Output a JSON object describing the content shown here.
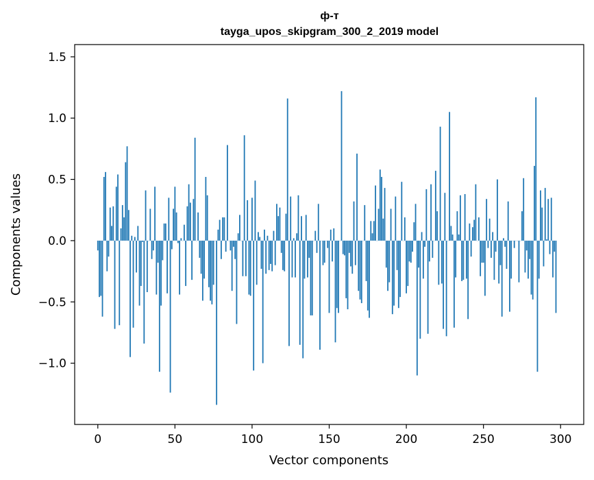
{
  "chart_data": {
    "type": "bar",
    "title": "ф-т",
    "subtitle": "tayga_upos_skipgram_300_2_2019 model",
    "xlabel": "Vector components",
    "ylabel": "Components values",
    "xlim": [
      -15,
      315
    ],
    "ylim": [
      -1.5,
      1.6
    ],
    "xticks": [
      0,
      50,
      100,
      150,
      200,
      250,
      300
    ],
    "xtick_labels": [
      "0",
      "50",
      "100",
      "150",
      "200",
      "250",
      "300"
    ],
    "yticks": [
      -1.0,
      -0.5,
      0.0,
      0.5,
      1.0,
      1.5
    ],
    "ytick_labels": [
      "−1.0",
      "−0.5",
      "0.0",
      "0.5",
      "1.0",
      "1.5"
    ],
    "grid": false,
    "legend": false,
    "bar_color": "#1f77b4",
    "x": "indices 0..299",
    "values": [
      -0.08,
      -0.46,
      -0.45,
      -0.62,
      0.52,
      0.56,
      -0.25,
      -0.13,
      0.27,
      0.12,
      0.28,
      -0.72,
      0.44,
      0.54,
      -0.69,
      0.1,
      0.29,
      0.19,
      0.64,
      0.77,
      0.25,
      -0.95,
      0.04,
      -0.71,
      0.03,
      -0.26,
      0.12,
      -0.53,
      -0.37,
      -0.01,
      -0.84,
      0.41,
      -0.42,
      0.0,
      0.26,
      -0.15,
      -0.08,
      0.44,
      -0.44,
      -0.18,
      -1.07,
      -0.53,
      -0.16,
      0.14,
      0.14,
      -0.43,
      0.35,
      -1.24,
      -0.07,
      0.26,
      0.44,
      0.23,
      -0.02,
      -0.44,
      0.02,
      0.0,
      0.13,
      -0.37,
      0.28,
      0.46,
      0.31,
      -0.32,
      0.34,
      0.84,
      0.0,
      0.23,
      -0.14,
      -0.27,
      -0.49,
      -0.31,
      0.52,
      0.37,
      -0.38,
      -0.49,
      -0.52,
      -0.36,
      0.0,
      -1.34,
      0.09,
      0.17,
      -0.15,
      0.19,
      0.19,
      -0.09,
      0.78,
      0.0,
      -0.08,
      -0.41,
      -0.05,
      -0.15,
      -0.68,
      0.06,
      0.21,
      0.0,
      -0.29,
      0.86,
      -0.29,
      0.33,
      -0.44,
      -0.45,
      0.35,
      -1.06,
      0.49,
      -0.36,
      0.07,
      0.03,
      -0.23,
      -1.0,
      0.09,
      -0.27,
      0.04,
      -0.24,
      -0.19,
      -0.25,
      0.08,
      -0.2,
      0.3,
      0.2,
      0.27,
      -0.1,
      -0.24,
      -0.25,
      0.22,
      1.16,
      -0.86,
      0.36,
      -0.3,
      0.02,
      -0.3,
      0.06,
      0.37,
      -0.85,
      0.2,
      -0.96,
      -0.31,
      0.21,
      -0.3,
      -0.14,
      -0.61,
      -0.61,
      0.0,
      0.08,
      -0.1,
      0.3,
      -0.89,
      0.0,
      -0.2,
      -0.18,
      0.0,
      -0.06,
      -0.59,
      0.09,
      -0.17,
      0.1,
      -0.83,
      -0.55,
      -0.59,
      0.0,
      1.22,
      -0.11,
      -0.12,
      -0.47,
      -0.56,
      -0.1,
      -0.21,
      -0.27,
      0.32,
      -0.2,
      0.71,
      -0.41,
      -0.48,
      -0.51,
      0.0,
      0.29,
      -0.33,
      -0.57,
      -0.63,
      0.16,
      0.06,
      0.16,
      0.45,
      0.0,
      0.26,
      0.58,
      0.52,
      0.18,
      0.43,
      -0.22,
      -0.41,
      -0.34,
      0.26,
      -0.6,
      -0.53,
      0.36,
      -0.24,
      -0.55,
      -0.46,
      0.48,
      0.0,
      0.19,
      -0.43,
      -0.37,
      -0.17,
      -0.18,
      -0.09,
      0.15,
      0.3,
      -1.1,
      -0.22,
      -0.8,
      0.07,
      -0.31,
      -0.05,
      0.42,
      -0.76,
      -0.17,
      0.46,
      -0.14,
      0.0,
      0.57,
      0.24,
      -0.36,
      0.93,
      -0.35,
      -0.72,
      0.39,
      -0.78,
      0.0,
      1.05,
      0.12,
      0.05,
      -0.71,
      -0.3,
      0.24,
      0.05,
      0.37,
      -0.33,
      -0.32,
      0.38,
      -0.31,
      -0.64,
      0.14,
      -0.13,
      0.11,
      0.17,
      0.46,
      0.0,
      0.19,
      -0.29,
      -0.18,
      -0.18,
      -0.45,
      0.34,
      -0.06,
      0.18,
      -0.14,
      0.07,
      -0.32,
      -0.09,
      0.5,
      -0.35,
      -0.2,
      -0.62,
      0.02,
      -0.05,
      -0.23,
      0.32,
      -0.58,
      -0.31,
      0.0,
      -0.06,
      0.0,
      0.0,
      -0.34,
      0.0,
      0.24,
      0.51,
      -0.26,
      -0.08,
      -0.31,
      -0.15,
      -0.44,
      -0.48,
      0.61,
      1.17,
      -1.07,
      -0.31,
      0.41,
      0.27,
      -0.21,
      0.43,
      0.01,
      0.34,
      -0.11,
      0.35,
      -0.3,
      -0.09,
      -0.59
    ]
  }
}
